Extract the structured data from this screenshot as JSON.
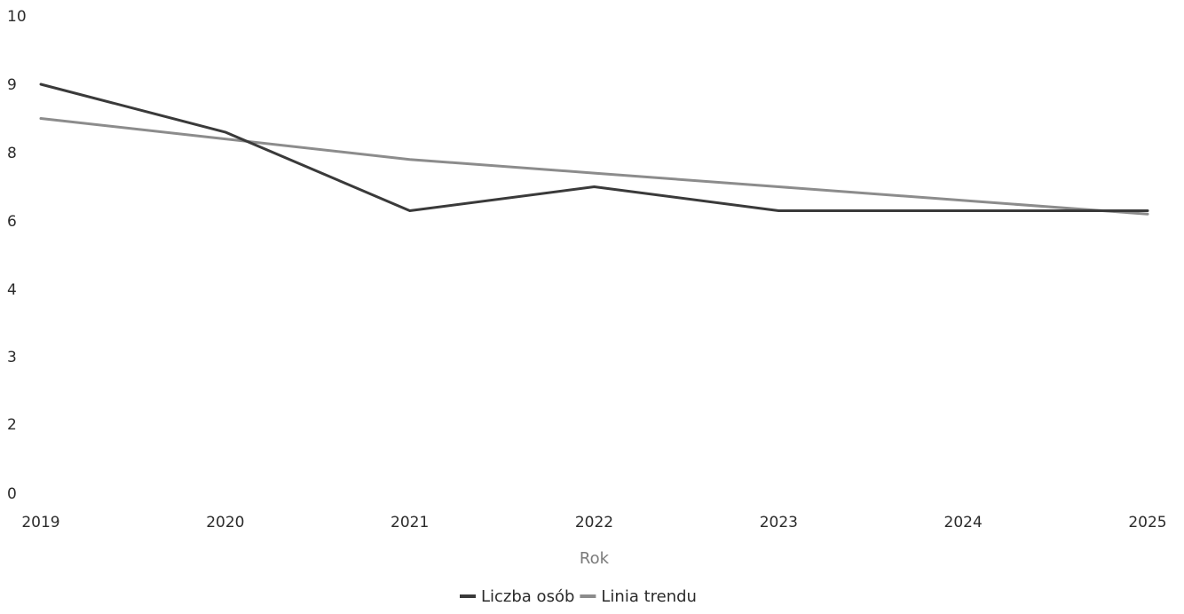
{
  "chart_data": {
    "type": "line",
    "title": "",
    "xlabel": "Rok",
    "ylabel": "",
    "categories": [
      "2019",
      "2020",
      "2021",
      "2022",
      "2023",
      "2024",
      "2025"
    ],
    "yticks": [
      "0",
      "2",
      "3",
      "4",
      "6",
      "8",
      "9",
      "10"
    ],
    "ylim": [
      0,
      10
    ],
    "grid": false,
    "legend_position": "bottom",
    "series": [
      {
        "name": "Liczba osób",
        "color": "#3a3a3a",
        "values": [
          9,
          8.3,
          6.3,
          7,
          6.3,
          6.3,
          6.3
        ]
      },
      {
        "name": "Linia trendu",
        "color": "#8c8c8c",
        "values": [
          8.5,
          8.2,
          7.8,
          7.4,
          7.0,
          6.6,
          6.2
        ]
      }
    ]
  }
}
